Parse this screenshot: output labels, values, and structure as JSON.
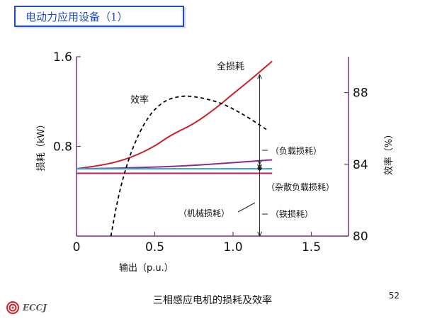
{
  "page": {
    "title": "电动力应用设备（1）",
    "caption": "三相感应电机的损耗及效率",
    "page_number": "52",
    "logo_text": "ECCJ"
  },
  "colors": {
    "total": "#cc1f2a",
    "stray": "#8e2a96",
    "mechanical": "#2aa3d1",
    "iron": "#c6175a",
    "efficiency": "#000000",
    "axis": "#7d2f8a",
    "title": "#1e4fbf"
  },
  "chart_data": {
    "type": "line",
    "xlabel": "输出（p.u.）",
    "ylabel_left": "损耗（kW）",
    "ylabel_right": "效率（%）",
    "xlim": [
      0,
      1.75
    ],
    "ylim_left": [
      0,
      1.6
    ],
    "ylim_right": [
      80,
      90
    ],
    "x_ticks": [
      "0",
      "0.5",
      "1.0",
      "1.5"
    ],
    "y_left_ticks": [
      "0.8",
      "1.6"
    ],
    "y_right_ticks": [
      "80",
      "84",
      "88"
    ],
    "series": [
      {
        "name": "全损耗",
        "axis": "left",
        "x": [
          0,
          0.2,
          0.35,
          0.5,
          0.6,
          0.75,
          0.9,
          1.0,
          1.1,
          1.2,
          1.25
        ],
        "y": [
          0.6,
          0.64,
          0.7,
          0.8,
          0.9,
          1.0,
          1.15,
          1.27,
          1.38,
          1.5,
          1.56
        ]
      },
      {
        "name": "杂散负载损耗",
        "axis": "left",
        "x": [
          0,
          0.25,
          0.5,
          0.75,
          1.0,
          1.25
        ],
        "y": [
          0.6,
          0.605,
          0.615,
          0.63,
          0.655,
          0.68
        ]
      },
      {
        "name": "机械损耗",
        "axis": "left",
        "x": [
          0,
          1.25
        ],
        "y": [
          0.6,
          0.6
        ]
      },
      {
        "name": "铁损耗",
        "axis": "left",
        "x": [
          0,
          1.25
        ],
        "y": [
          0.56,
          0.56
        ]
      },
      {
        "name": "效率",
        "axis": "right",
        "x": [
          0.22,
          0.27,
          0.35,
          0.45,
          0.55,
          0.65,
          0.75,
          0.9,
          1.0,
          1.1,
          1.22
        ],
        "y": [
          80,
          82.4,
          84.8,
          86.6,
          87.5,
          87.8,
          87.8,
          87.5,
          87.1,
          86.6,
          85.9
        ]
      }
    ],
    "annotations": {
      "total": "全损耗",
      "efficiency": "效率",
      "load": "（负载损耗）",
      "stray": "（杂散负载损耗）",
      "mechanical": "（机械损耗）",
      "iron": "（铁损耗）"
    }
  }
}
